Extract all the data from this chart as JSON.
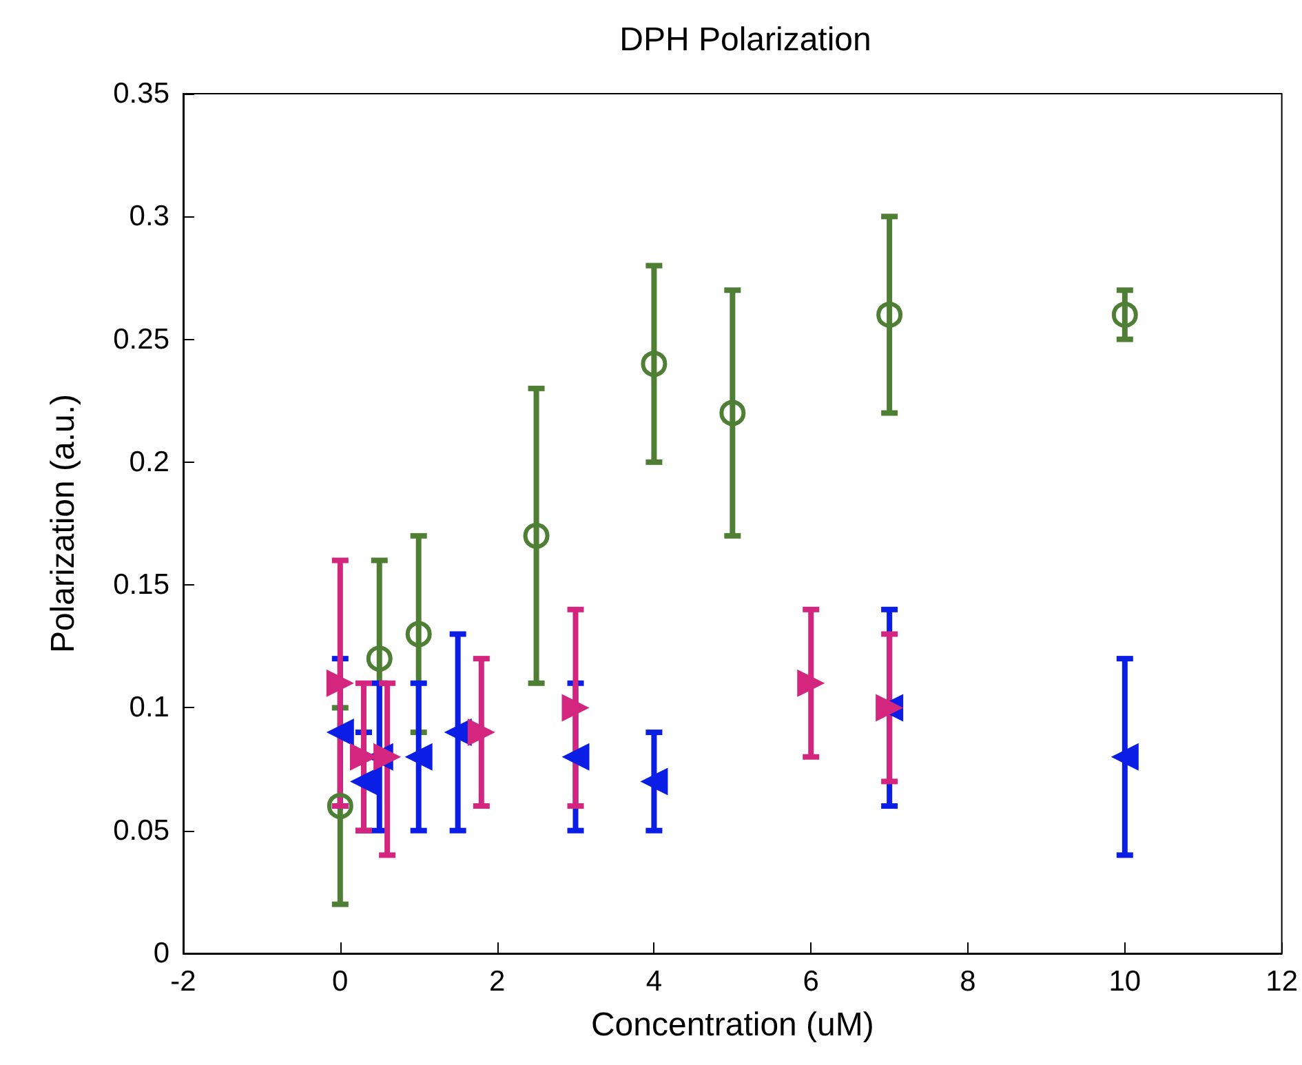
{
  "chart_data": {
    "type": "scatter",
    "title": "DPH Polarization",
    "xlabel": "Concentration (uM)",
    "ylabel": "Polarization (a.u.)",
    "xlim": [
      -2,
      12
    ],
    "xticks": [
      -2,
      0,
      2,
      4,
      6,
      8,
      10,
      12
    ],
    "ylim": [
      0,
      0.35
    ],
    "yticks": [
      0,
      0.05,
      0.1,
      0.15,
      0.2,
      0.25,
      0.3,
      0.35
    ],
    "grid": false,
    "series": [
      {
        "color": "#4e7f35",
        "marker": "circle",
        "x": [
          0,
          0.5,
          1,
          2.5,
          4,
          5,
          7,
          10
        ],
        "values": [
          0.06,
          0.12,
          0.13,
          0.17,
          0.24,
          0.22,
          0.26,
          0.26
        ],
        "errors": [
          0.04,
          0.04,
          0.04,
          0.06,
          0.04,
          0.05,
          0.04,
          0.01
        ]
      },
      {
        "color": "#0a1ee6",
        "marker": "triangle",
        "x": [
          0,
          0.3,
          0.5,
          1,
          1.5,
          3,
          4,
          7,
          10
        ],
        "values": [
          0.09,
          0.07,
          0.08,
          0.08,
          0.09,
          0.08,
          0.07,
          0.1,
          0.08
        ],
        "errors": [
          0.03,
          0.02,
          0.03,
          0.03,
          0.04,
          0.03,
          0.02,
          0.04,
          0.04
        ]
      },
      {
        "color": "#d4267f",
        "marker": "triangle",
        "x": [
          0,
          0.3,
          0.6,
          1.8,
          3,
          6,
          7
        ],
        "values": [
          0.11,
          0.08,
          0.08,
          0.09,
          0.1,
          0.11,
          0.1
        ],
        "errors": [
          0.05,
          0.03,
          [
            0.04,
            0.11
          ],
          0.03,
          0.04,
          0.03,
          0.03
        ]
      }
    ]
  }
}
